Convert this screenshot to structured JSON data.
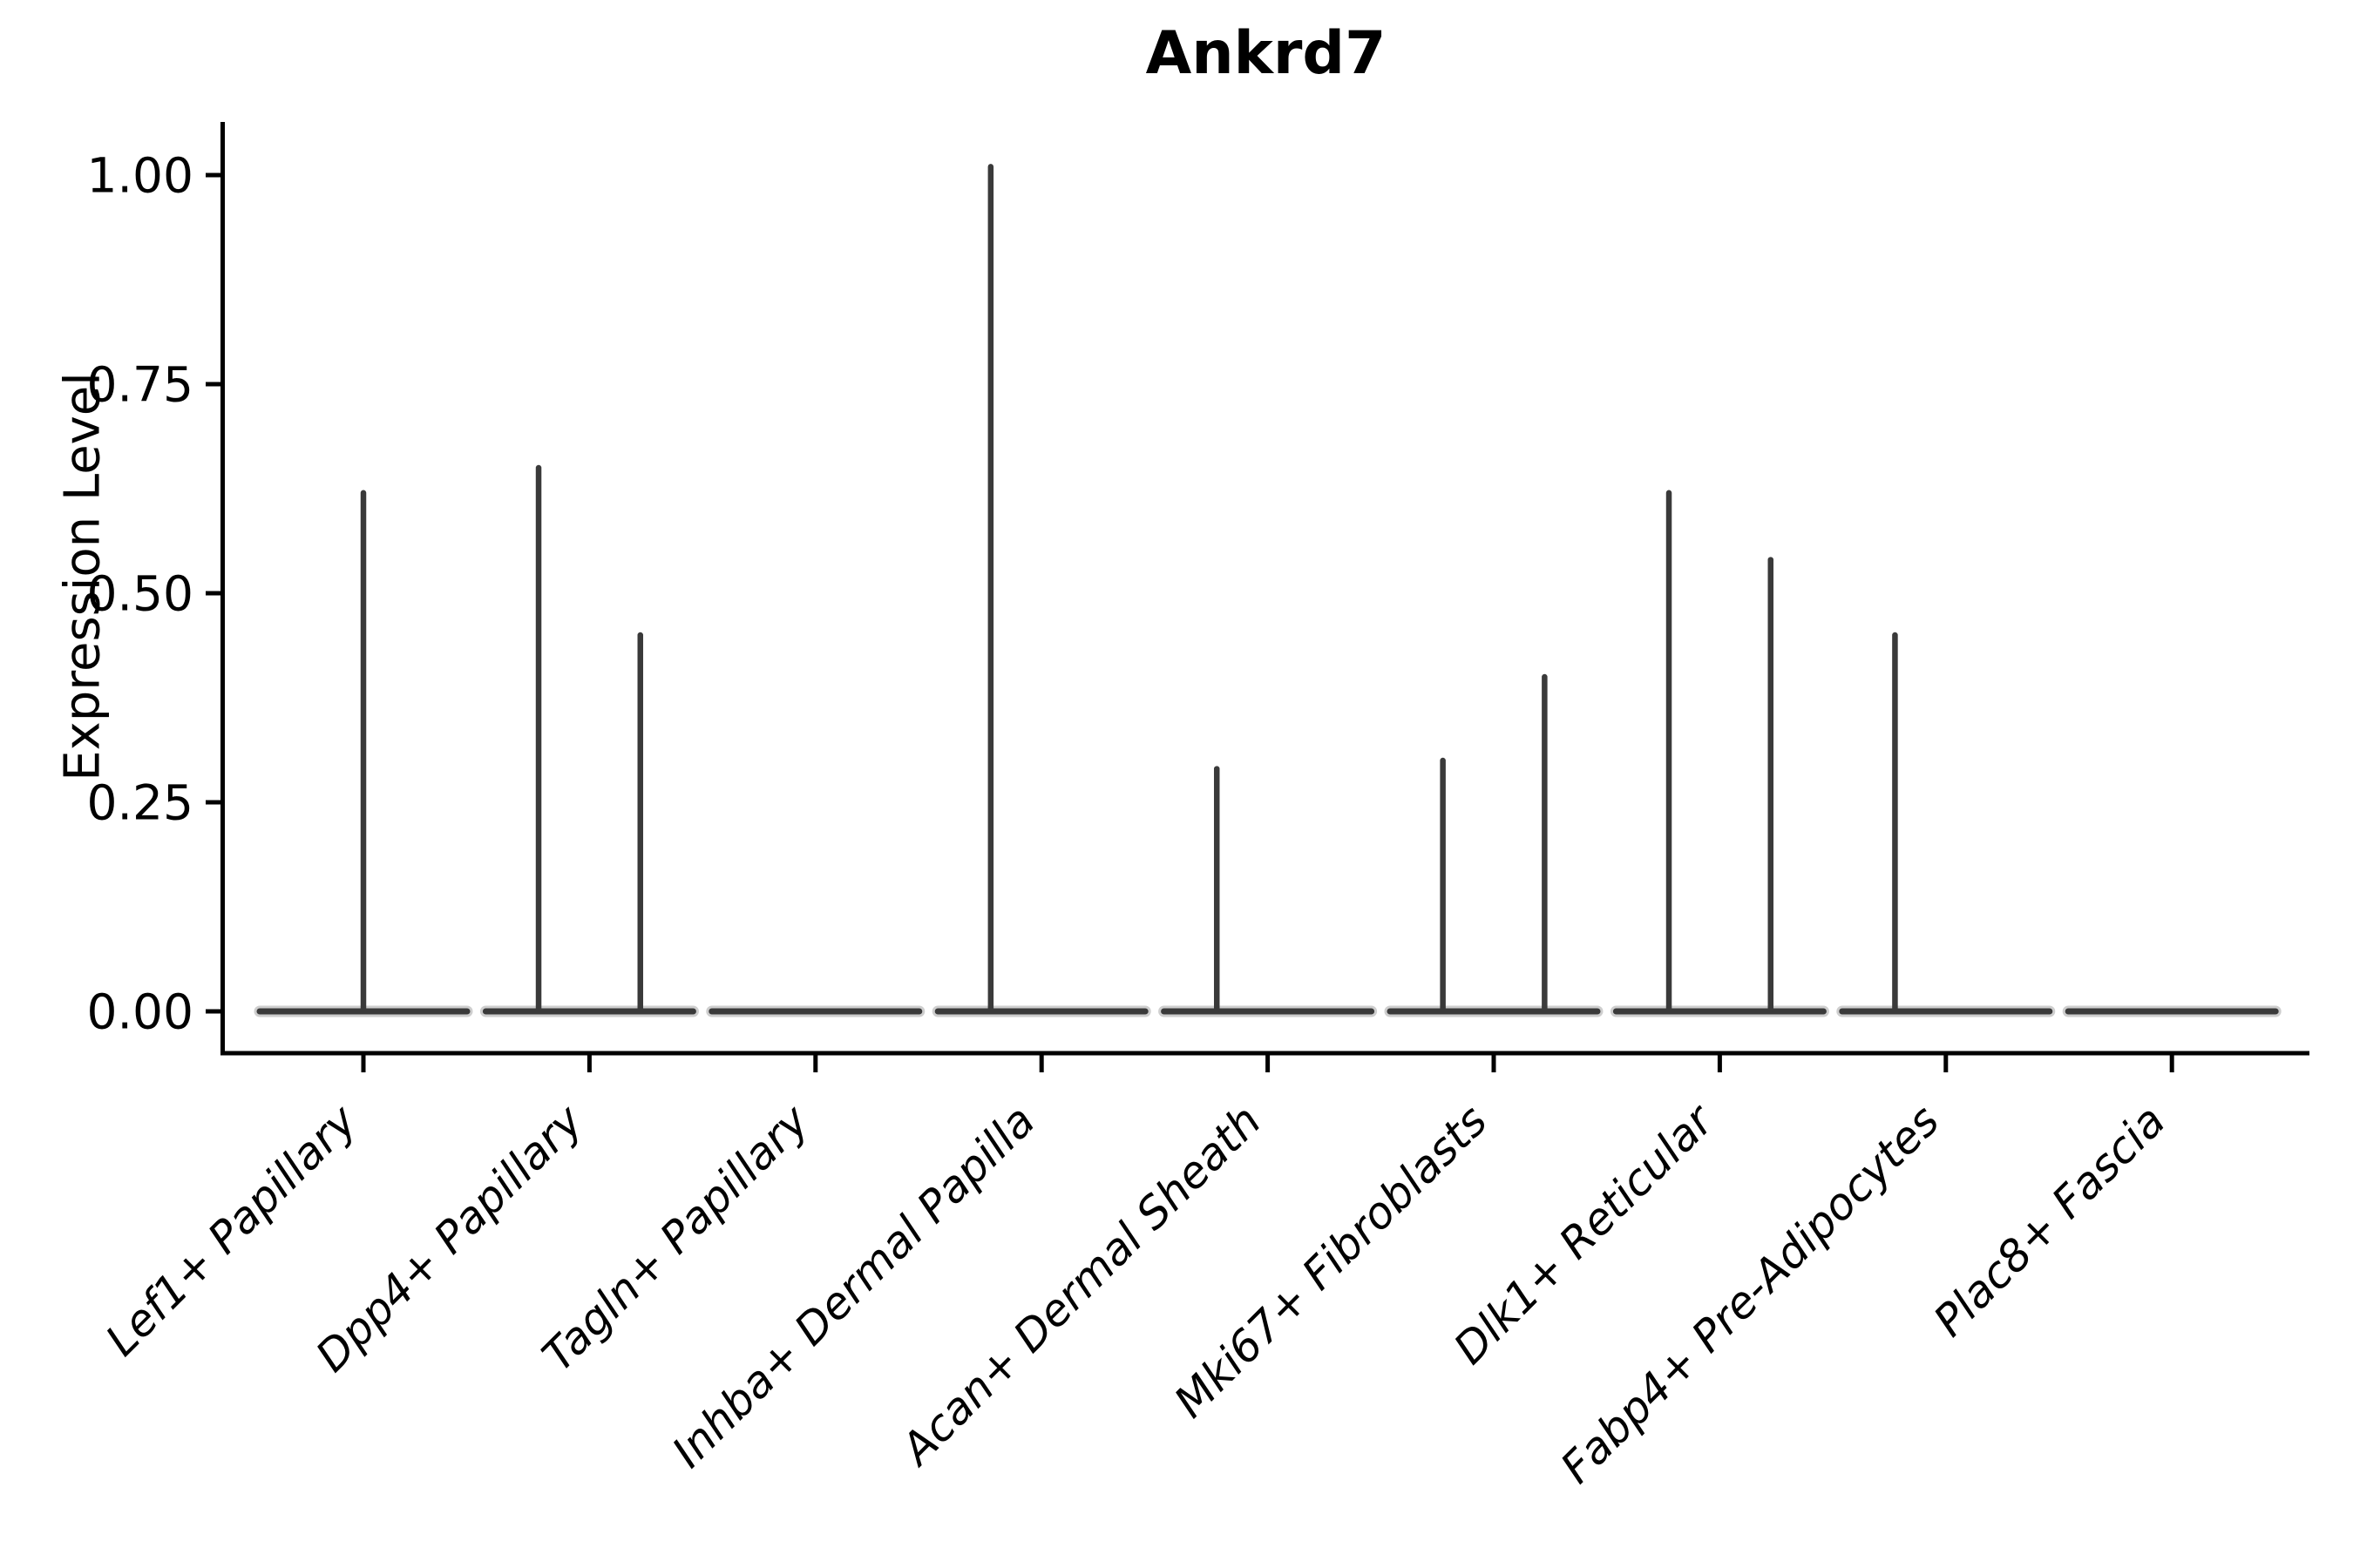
{
  "title": "Ankrd7",
  "chart_data": {
    "type": "violin",
    "title": "Ankrd7",
    "xlabel": "",
    "ylabel": "Expression Level",
    "ylim": [
      -0.05,
      1.06
    ],
    "yticks": [
      1.0,
      0.75,
      0.5,
      0.25,
      0.0
    ],
    "ytick_labels": [
      "1.00",
      "0.75",
      "0.50",
      "0.25",
      "0.00"
    ],
    "grid": false,
    "legend": "none",
    "categories": [
      "Lef1+ Papillary",
      "Dpp4+ Papillary",
      "Tagln+ Papillary",
      "Inhba+ Dermal Papilla",
      "Acan+ Dermal Sheath",
      "Mki67+ Fibroblasts",
      "Dlk1+ Reticular",
      "Fabp4+ Pre-Adipocytes",
      "Plac8+ Fascia"
    ],
    "violins": [
      {
        "category": "Lef1+ Papillary",
        "base_value": 0,
        "spikes": [
          {
            "offset": 0.0,
            "max_expression": 0.62
          }
        ]
      },
      {
        "category": "Dpp4+ Papillary",
        "base_value": 0,
        "spikes": [
          {
            "offset": -0.225,
            "max_expression": 0.65
          },
          {
            "offset": 0.225,
            "max_expression": 0.45
          }
        ]
      },
      {
        "category": "Tagln+ Papillary",
        "base_value": 0,
        "spikes": []
      },
      {
        "category": "Inhba+ Dermal Papilla",
        "base_value": 0,
        "spikes": [
          {
            "offset": -0.225,
            "max_expression": 1.01
          }
        ]
      },
      {
        "category": "Acan+ Dermal Sheath",
        "base_value": 0,
        "spikes": [
          {
            "offset": -0.225,
            "max_expression": 0.29
          }
        ]
      },
      {
        "category": "Mki67+ Fibroblasts",
        "base_value": 0,
        "spikes": [
          {
            "offset": -0.225,
            "max_expression": 0.3
          },
          {
            "offset": 0.225,
            "max_expression": 0.4
          }
        ]
      },
      {
        "category": "Dlk1+ Reticular",
        "base_value": 0,
        "spikes": [
          {
            "offset": -0.225,
            "max_expression": 0.62
          },
          {
            "offset": 0.225,
            "max_expression": 0.54
          }
        ]
      },
      {
        "category": "Fabp4+ Pre-Adipocytes",
        "base_value": 0,
        "spikes": [
          {
            "offset": -0.225,
            "max_expression": 0.45
          }
        ]
      },
      {
        "category": "Plac8+ Fascia",
        "base_value": 0,
        "spikes": []
      }
    ],
    "style": {
      "violin_line_color": "#3a3a3a",
      "violin_halo_color": "#949494",
      "axis_color": "#000000",
      "background_color": "#ffffff"
    }
  }
}
